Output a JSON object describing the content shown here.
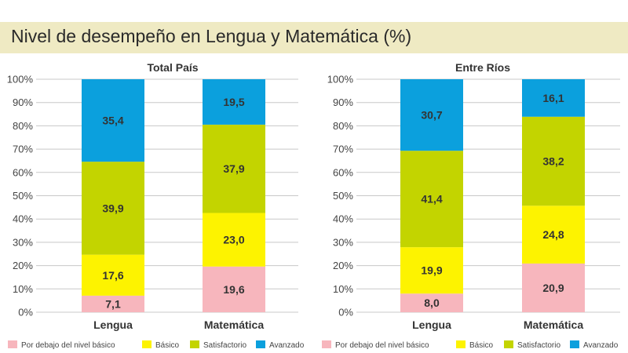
{
  "title": "Nivel de desempeño en Lengua y Matemática (%)",
  "colors": {
    "header_bg": "#efeac3",
    "grid": "#c8c8c8"
  },
  "chart_data": [
    {
      "type": "bar",
      "stacked": true,
      "title": "Total País",
      "categories": [
        "Lengua",
        "Matemática"
      ],
      "ylim": [
        0,
        100
      ],
      "yticks": [
        "0%",
        "10%",
        "20%",
        "30%",
        "40%",
        "50%",
        "60%",
        "70%",
        "80%",
        "90%",
        "100%"
      ],
      "grid": true,
      "series": [
        {
          "name": "Por debajo del nivel básico",
          "color": "#f7b6bd",
          "values": [
            7.1,
            19.6
          ],
          "labels": [
            "7,1",
            "19,6"
          ]
        },
        {
          "name": "Básico",
          "color": "#fdf300",
          "values": [
            17.6,
            23.0
          ],
          "labels": [
            "17,6",
            "23,0"
          ]
        },
        {
          "name": "Satisfactorio",
          "color": "#c3d400",
          "values": [
            39.9,
            37.9
          ],
          "labels": [
            "39,9",
            "37,9"
          ]
        },
        {
          "name": "Avanzado",
          "color": "#0ba0dd",
          "values": [
            35.4,
            19.5
          ],
          "labels": [
            "35,4",
            "19,5"
          ]
        }
      ],
      "legend": "bottom"
    },
    {
      "type": "bar",
      "stacked": true,
      "title": "Entre Ríos",
      "categories": [
        "Lengua",
        "Matemática"
      ],
      "ylim": [
        0,
        100
      ],
      "yticks": [
        "0%",
        "10%",
        "20%",
        "30%",
        "40%",
        "50%",
        "60%",
        "70%",
        "80%",
        "90%",
        "100%"
      ],
      "grid": true,
      "series": [
        {
          "name": "Por debajo del nivel básico",
          "color": "#f7b6bd",
          "values": [
            8.0,
            20.9
          ],
          "labels": [
            "8,0",
            "20,9"
          ]
        },
        {
          "name": "Básico",
          "color": "#fdf300",
          "values": [
            19.9,
            24.8
          ],
          "labels": [
            "19,9",
            "24,8"
          ]
        },
        {
          "name": "Satisfactorio",
          "color": "#c3d400",
          "values": [
            41.4,
            38.2
          ],
          "labels": [
            "41,4",
            "38,2"
          ]
        },
        {
          "name": "Avanzado",
          "color": "#0ba0dd",
          "values": [
            30.7,
            16.1
          ],
          "labels": [
            "30,7",
            "16,1"
          ]
        }
      ],
      "legend": "bottom"
    }
  ]
}
